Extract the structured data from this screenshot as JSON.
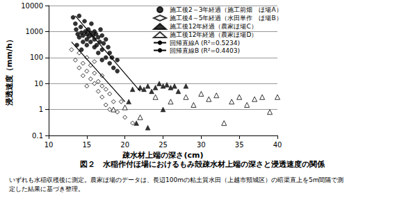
{
  "chart_data": {
    "type": "scatter",
    "title": "図２　水稲作付ほ場におけるもみ殻疎水材上端の深さと浸透速度の関係",
    "notes": [
      "いずれも水稲収穫後に測定。農家ほ場のデータは、長辺100mの粘土質水田（上越市頸城区）の暗渠直上を5m間隔で測",
      "定した結果に基づき整理。"
    ],
    "x_label": "疎水材上端の深さ(cm)",
    "y_label": "浸透速度（mm/h）",
    "log": "y",
    "grid": "y",
    "legend": "top-right",
    "xlim": [
      10,
      40
    ],
    "xticks": [
      10,
      15,
      20,
      25,
      30,
      35,
      40
    ],
    "ylim": [
      0.1,
      10000
    ],
    "yticks": [
      0.1,
      1,
      10,
      100,
      1000,
      10000
    ],
    "series": [
      {
        "name": "施工後2～3年経過（施工前畑　ほ場A）",
        "type": "scatter",
        "color": "#000000",
        "marker": "circle",
        "values": [
          [
            13.2,
            3500
          ],
          [
            13.5,
            2000
          ],
          [
            13.6,
            1200
          ],
          [
            13.8,
            800
          ],
          [
            14,
            4000
          ],
          [
            14,
            600
          ],
          [
            14.2,
            1500
          ],
          [
            14.3,
            900
          ],
          [
            14.5,
            700
          ],
          [
            14.5,
            400
          ],
          [
            14.7,
            2500
          ],
          [
            14.8,
            1000
          ],
          [
            15,
            800
          ],
          [
            15,
            500
          ],
          [
            15,
            300
          ],
          [
            15.2,
            1200
          ],
          [
            15.3,
            650
          ],
          [
            15.5,
            900
          ],
          [
            15.5,
            400
          ],
          [
            15.6,
            2000
          ],
          [
            15.8,
            700
          ],
          [
            16,
            1000
          ],
          [
            16,
            500
          ],
          [
            16,
            250
          ],
          [
            16.2,
            800
          ],
          [
            16.3,
            300
          ],
          [
            16.5,
            600
          ],
          [
            16.5,
            150
          ],
          [
            16.7,
            400
          ],
          [
            17,
            700
          ],
          [
            17,
            200
          ],
          [
            17,
            80
          ],
          [
            17.2,
            350
          ],
          [
            17.5,
            500
          ],
          [
            17.5,
            100
          ],
          [
            17.8,
            250
          ],
          [
            18,
            150
          ],
          [
            18,
            60
          ],
          [
            18.3,
            100
          ],
          [
            18.5,
            40
          ],
          [
            19,
            80
          ],
          [
            19,
            30
          ],
          [
            16.8,
            1200
          ],
          [
            14.3,
            200
          ],
          [
            13.7,
            300
          ]
        ]
      },
      {
        "name": "施工後4～5年経過（水田単作　ほ場B）",
        "type": "scatter",
        "color": "#000000",
        "marker": "diamond_open",
        "values": [
          [
            13,
            200
          ],
          [
            13.5,
            80
          ],
          [
            14,
            150
          ],
          [
            14,
            40
          ],
          [
            14.5,
            60
          ],
          [
            14.5,
            20
          ],
          [
            15,
            100
          ],
          [
            15,
            30
          ],
          [
            15.5,
            15
          ],
          [
            15.5,
            50
          ],
          [
            16,
            10
          ],
          [
            16,
            25
          ],
          [
            16.5,
            5
          ],
          [
            16.5,
            12
          ],
          [
            17,
            8
          ],
          [
            17,
            3
          ],
          [
            17.5,
            6
          ],
          [
            17.5,
            1.5
          ],
          [
            18,
            4
          ],
          [
            18,
            1
          ],
          [
            18.5,
            2
          ],
          [
            19,
            0.8
          ],
          [
            19.5,
            2
          ],
          [
            20,
            0.5
          ],
          [
            21,
            0.3
          ],
          [
            16,
            70
          ],
          [
            15,
            8
          ],
          [
            17,
            20
          ]
        ]
      },
      {
        "name": "施工後12年経過（農家ほ場C）",
        "type": "scatter",
        "color": "#000000",
        "marker": "triangle",
        "values": [
          [
            20.5,
            2
          ],
          [
            21,
            6
          ],
          [
            21.5,
            0.3
          ],
          [
            22,
            7
          ],
          [
            22.5,
            6
          ],
          [
            23,
            0.2
          ],
          [
            23,
            8
          ],
          [
            23.5,
            5
          ],
          [
            24,
            7
          ],
          [
            24.5,
            10
          ],
          [
            25,
            8
          ],
          [
            25.5,
            9
          ],
          [
            26,
            7
          ],
          [
            26.5,
            8
          ],
          [
            27,
            5
          ],
          [
            28,
            8
          ],
          [
            25,
            1
          ]
        ]
      },
      {
        "name": "施工後12年経過（農家ほ場D）",
        "type": "scatter",
        "color": "#000000",
        "marker": "triangle_open",
        "values": [
          [
            18.5,
            1
          ],
          [
            20,
            1.2
          ],
          [
            22,
            0.5
          ],
          [
            24,
            3
          ],
          [
            26,
            2
          ],
          [
            28,
            3
          ],
          [
            29,
            1.5
          ],
          [
            30,
            4
          ],
          [
            31,
            2.5
          ],
          [
            32,
            3.5
          ],
          [
            33,
            0.3
          ],
          [
            34,
            2
          ],
          [
            35,
            3
          ],
          [
            36,
            1.5
          ],
          [
            37,
            2.5
          ],
          [
            38,
            3
          ],
          [
            39,
            0.8
          ],
          [
            40,
            3
          ]
        ]
      },
      {
        "name": "回帰直線A (R²=0.5234)",
        "type": "line",
        "color": "#000000",
        "line_style": "solid",
        "values": [
          [
            13.5,
            4000
          ],
          [
            22,
            5
          ]
        ]
      },
      {
        "name": "回帰直線B (R²=0.4403)",
        "type": "line",
        "color": "#000000",
        "line_style": "solid",
        "values": [
          [
            13,
            400
          ],
          [
            20,
            2
          ]
        ]
      }
    ]
  }
}
